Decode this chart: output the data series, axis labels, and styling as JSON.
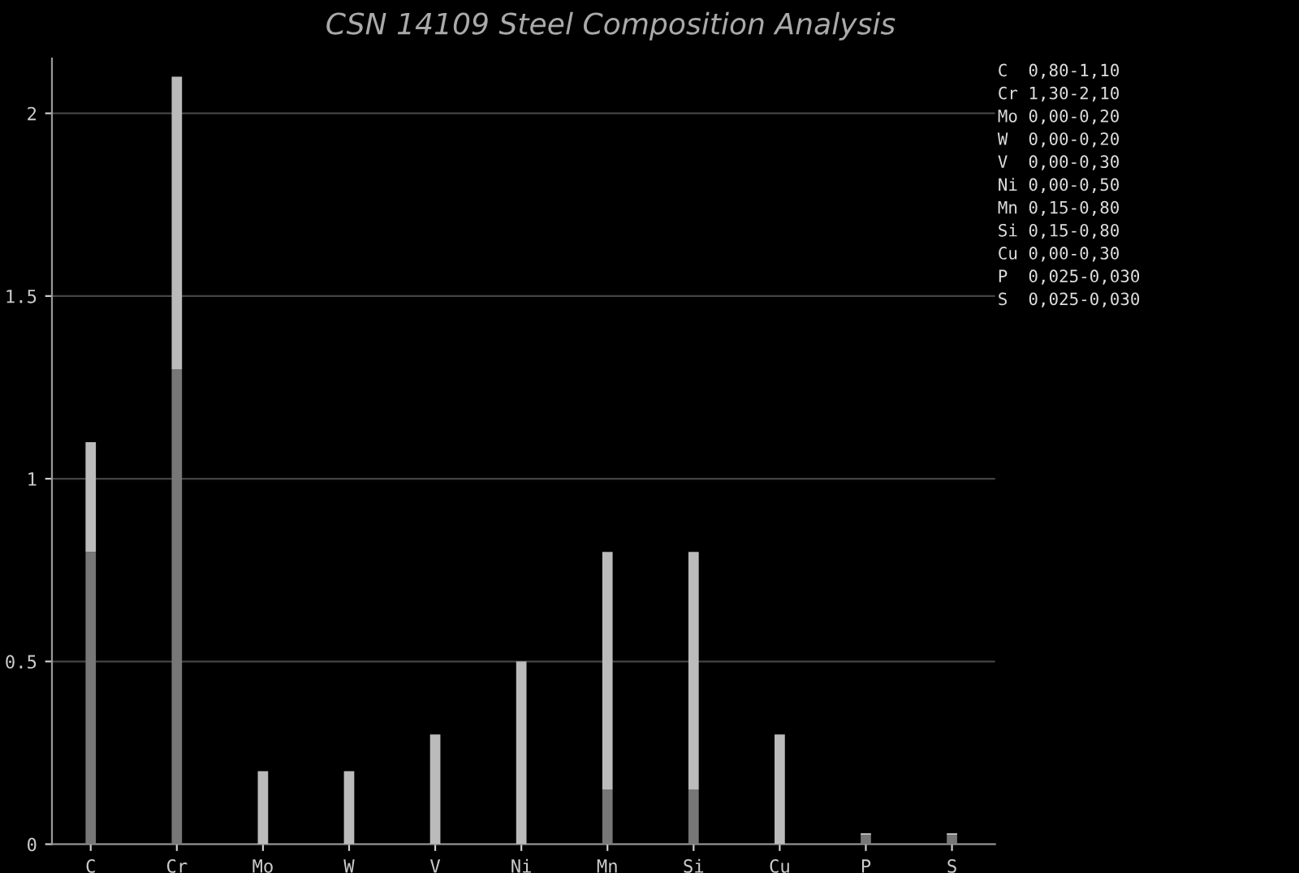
{
  "chart_data": {
    "type": "bar",
    "title": "CSN 14109 Steel Composition Analysis",
    "categories": [
      "C",
      "Cr",
      "Mo",
      "W",
      "V",
      "Ni",
      "Mn",
      "Si",
      "Cu",
      "P",
      "S"
    ],
    "stacked": true,
    "series": [
      {
        "color": "#777777",
        "values": [
          0.8,
          1.3,
          0,
          0,
          0,
          0,
          0.15,
          0.15,
          0,
          0.025,
          0.025
        ]
      },
      {
        "color": "#bbbbbb",
        "values": [
          0.3,
          0.8,
          0.2,
          0.2,
          0.3,
          0.5,
          0.65,
          0.65,
          0.3,
          0.005,
          0.005
        ]
      }
    ],
    "ylim": [
      0,
      2.15
    ],
    "yticks": [
      0,
      0.5,
      1,
      1.5,
      2
    ],
    "grid": "y",
    "annotations": [
      "C  0,80-1,10",
      "Cr 1,30-2,10",
      "Mo 0,00-0,20",
      "W  0,00-0,20",
      "V  0,00-0,30",
      "Ni 0,00-0,50",
      "Mn 0,15-0,80",
      "Si 0,15-0,80",
      "Cu 0,00-0,30",
      "P  0,025-0,030",
      "S  0,025-0,030"
    ]
  }
}
